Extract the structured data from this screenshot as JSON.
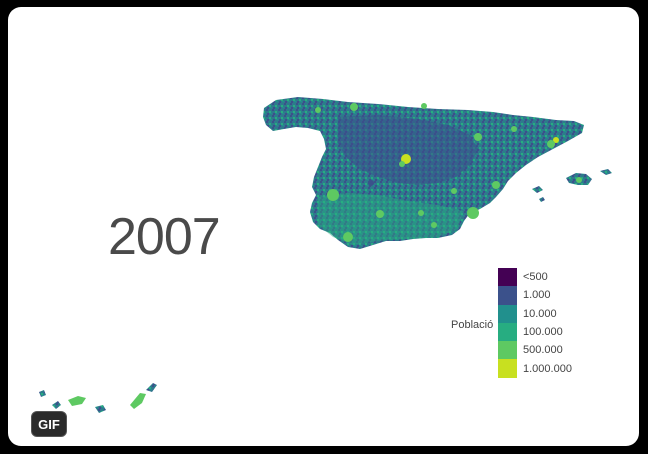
{
  "year_label": "2007",
  "legend": {
    "title": "Població",
    "items": [
      {
        "label": "<500",
        "color": "#440154"
      },
      {
        "label": "1.000",
        "color": "#3b518b"
      },
      {
        "label": "10.000",
        "color": "#21908d"
      },
      {
        "label": "100.000",
        "color": "#27ad81"
      },
      {
        "label": "500.000",
        "color": "#5ec962"
      },
      {
        "label": "1.000.000",
        "color": "#c8e020"
      }
    ]
  },
  "badge": {
    "label": "GIF"
  },
  "colors": {
    "frame_bg": "#ffffff",
    "outer_bg": "#000000",
    "map_base": "#2f6f8a",
    "map_mid": "#3b8f8a",
    "map_dark": "#3d4f8c",
    "map_green": "#56b86a",
    "map_yellow": "#c8e020"
  }
}
